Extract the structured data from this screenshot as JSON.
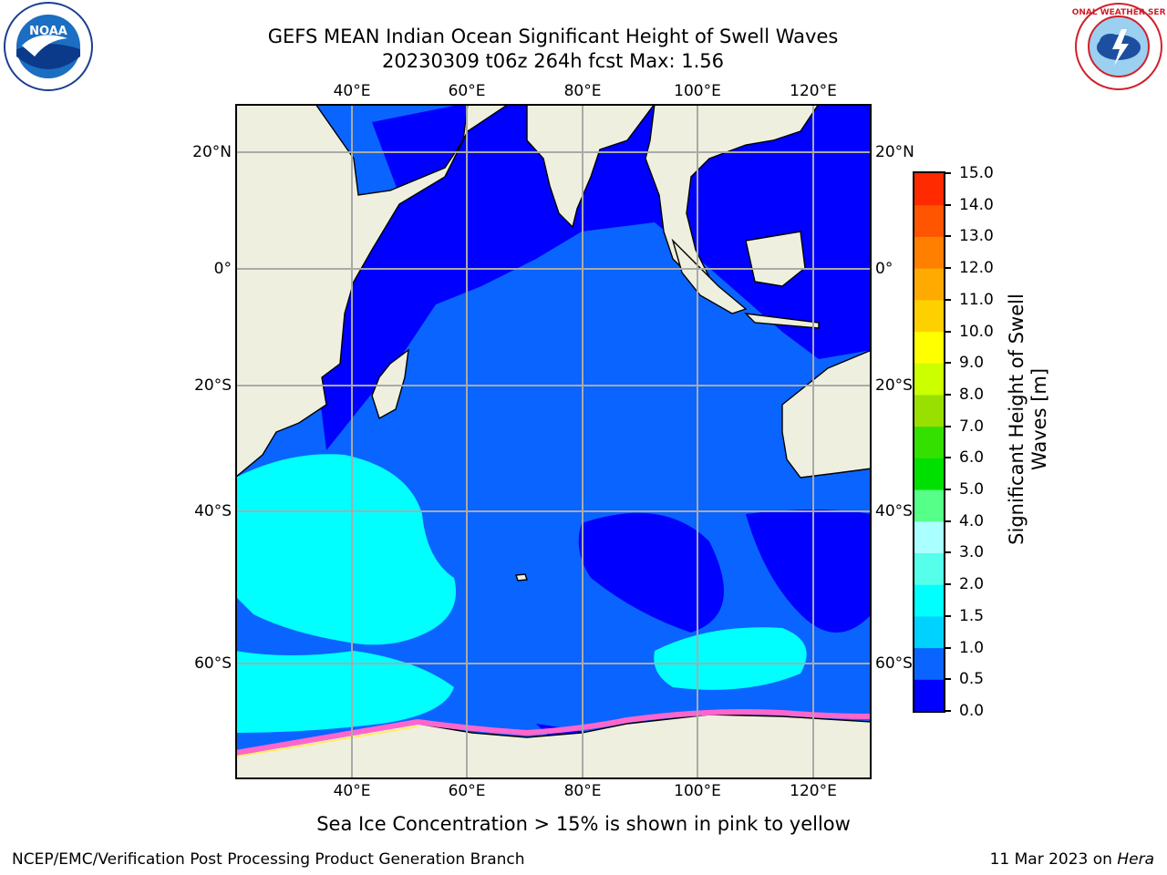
{
  "title": {
    "line1": "GEFS MEAN Indian Ocean Significant Height of Swell Waves",
    "line2": "20230309 t06z 264h fcst   Max: 1.56"
  },
  "logos": {
    "noaa": "NOAA",
    "nws": "NATIONAL WEATHER SERVICE"
  },
  "map": {
    "lon_ticks": [
      "40°E",
      "60°E",
      "80°E",
      "100°E",
      "120°E"
    ],
    "lat_ticks": [
      "20°N",
      "0°",
      "20°S",
      "40°S",
      "60°S"
    ],
    "extent": {
      "lon_min": 20,
      "lon_max": 130,
      "lat_min": -77,
      "lat_max": 27
    }
  },
  "colorbar": {
    "label": "Significant Height of Swell Waves [m]",
    "ticks": [
      "0.0",
      "0.5",
      "1.0",
      "1.5",
      "2.0",
      "3.0",
      "4.0",
      "5.0",
      "6.0",
      "7.0",
      "8.0",
      "9.0",
      "10.0",
      "11.0",
      "12.0",
      "13.0",
      "14.0",
      "15.0"
    ],
    "colors": [
      "#0000ff",
      "#0a64ff",
      "#00d2ff",
      "#00ffff",
      "#55ffe9",
      "#aaffff",
      "#55ff88",
      "#00e000",
      "#33e000",
      "#99e000",
      "#ccff00",
      "#ffff00",
      "#ffd000",
      "#ffaa00",
      "#ff8000",
      "#ff5500",
      "#ff2a00",
      "#ff0000"
    ]
  },
  "colors": {
    "land": "#efefdf",
    "ocean_low": "#0a64ff",
    "ocean_vlow": "#0000ff",
    "swell_mid": "#00ffff",
    "ice": "#ff66cc"
  },
  "caption": "Sea Ice Concentration > 15% is shown in pink to yellow",
  "footer": {
    "left": "NCEP/EMC/Verification Post Processing Product Generation Branch",
    "right_date": "11 Mar 2023 on ",
    "right_host": "Hera"
  }
}
